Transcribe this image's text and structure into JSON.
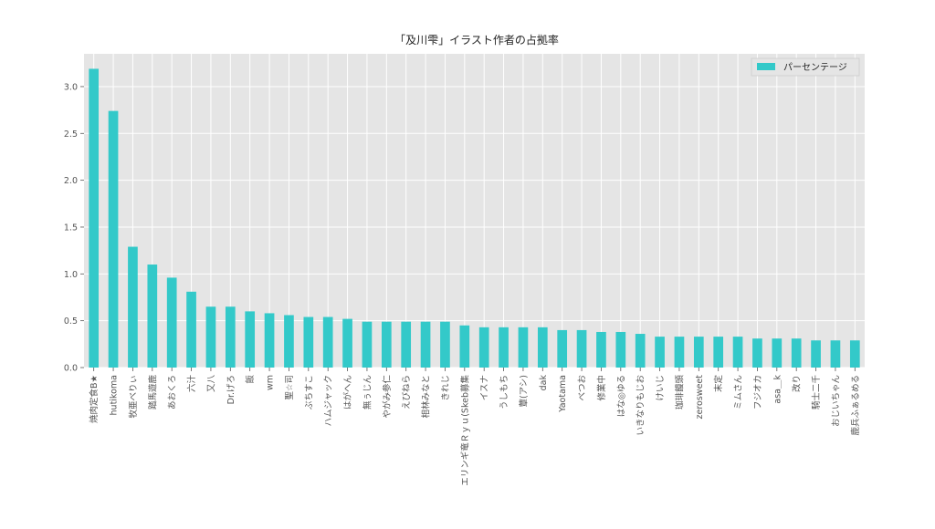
{
  "chart_data": {
    "type": "bar",
    "title": "「及川雫」イラスト作者の占拠率",
    "xlabel": "",
    "ylabel": "",
    "ylim": [
      0,
      3.35
    ],
    "yticks": [
      "0.0",
      "0.5",
      "1.0",
      "1.5",
      "2.0",
      "2.5",
      "3.0"
    ],
    "grid": true,
    "legend_position": "top-right",
    "bar_color": "#33c9c9",
    "plot_background": "#e5e5e5",
    "categories": [
      "焼肉定食B★",
      "hutikoma",
      "牧亜べりぃ",
      "踏馬遊鹿",
      "あおくろ",
      "六汁",
      "又八",
      "Dr.げろ",
      "飯",
      "wm",
      "聖☆司",
      "ぶちすこ",
      "ハムジャック",
      "はがへん",
      "無ぅじん",
      "やがみ参仁",
      "えびねら",
      "相林みなと",
      "きれじ",
      "エリンギ竜Ｒｙｕ(Skeb募集",
      "イスナ",
      "うしもち",
      "蕈(アシ)",
      "dak",
      "Yaotama",
      "べつお",
      "修業中",
      "はな◎ゆる",
      "いきなりもじお",
      "けいじ",
      "珈琲饅頭",
      "zerosweet",
      "末定",
      "ミムさん",
      "フジオカ",
      "asa＿k",
      "改り",
      "騎士二千",
      "おじいちゃん",
      "鹿兵ふぁるめる"
    ],
    "series": [
      {
        "name": "パーセンテージ",
        "values": [
          3.19,
          2.74,
          1.29,
          1.1,
          0.96,
          0.81,
          0.65,
          0.65,
          0.6,
          0.58,
          0.56,
          0.54,
          0.54,
          0.52,
          0.49,
          0.49,
          0.49,
          0.49,
          0.49,
          0.45,
          0.43,
          0.43,
          0.43,
          0.43,
          0.4,
          0.4,
          0.38,
          0.38,
          0.36,
          0.33,
          0.33,
          0.33,
          0.33,
          0.33,
          0.31,
          0.31,
          0.31,
          0.29,
          0.29,
          0.29
        ]
      }
    ]
  }
}
